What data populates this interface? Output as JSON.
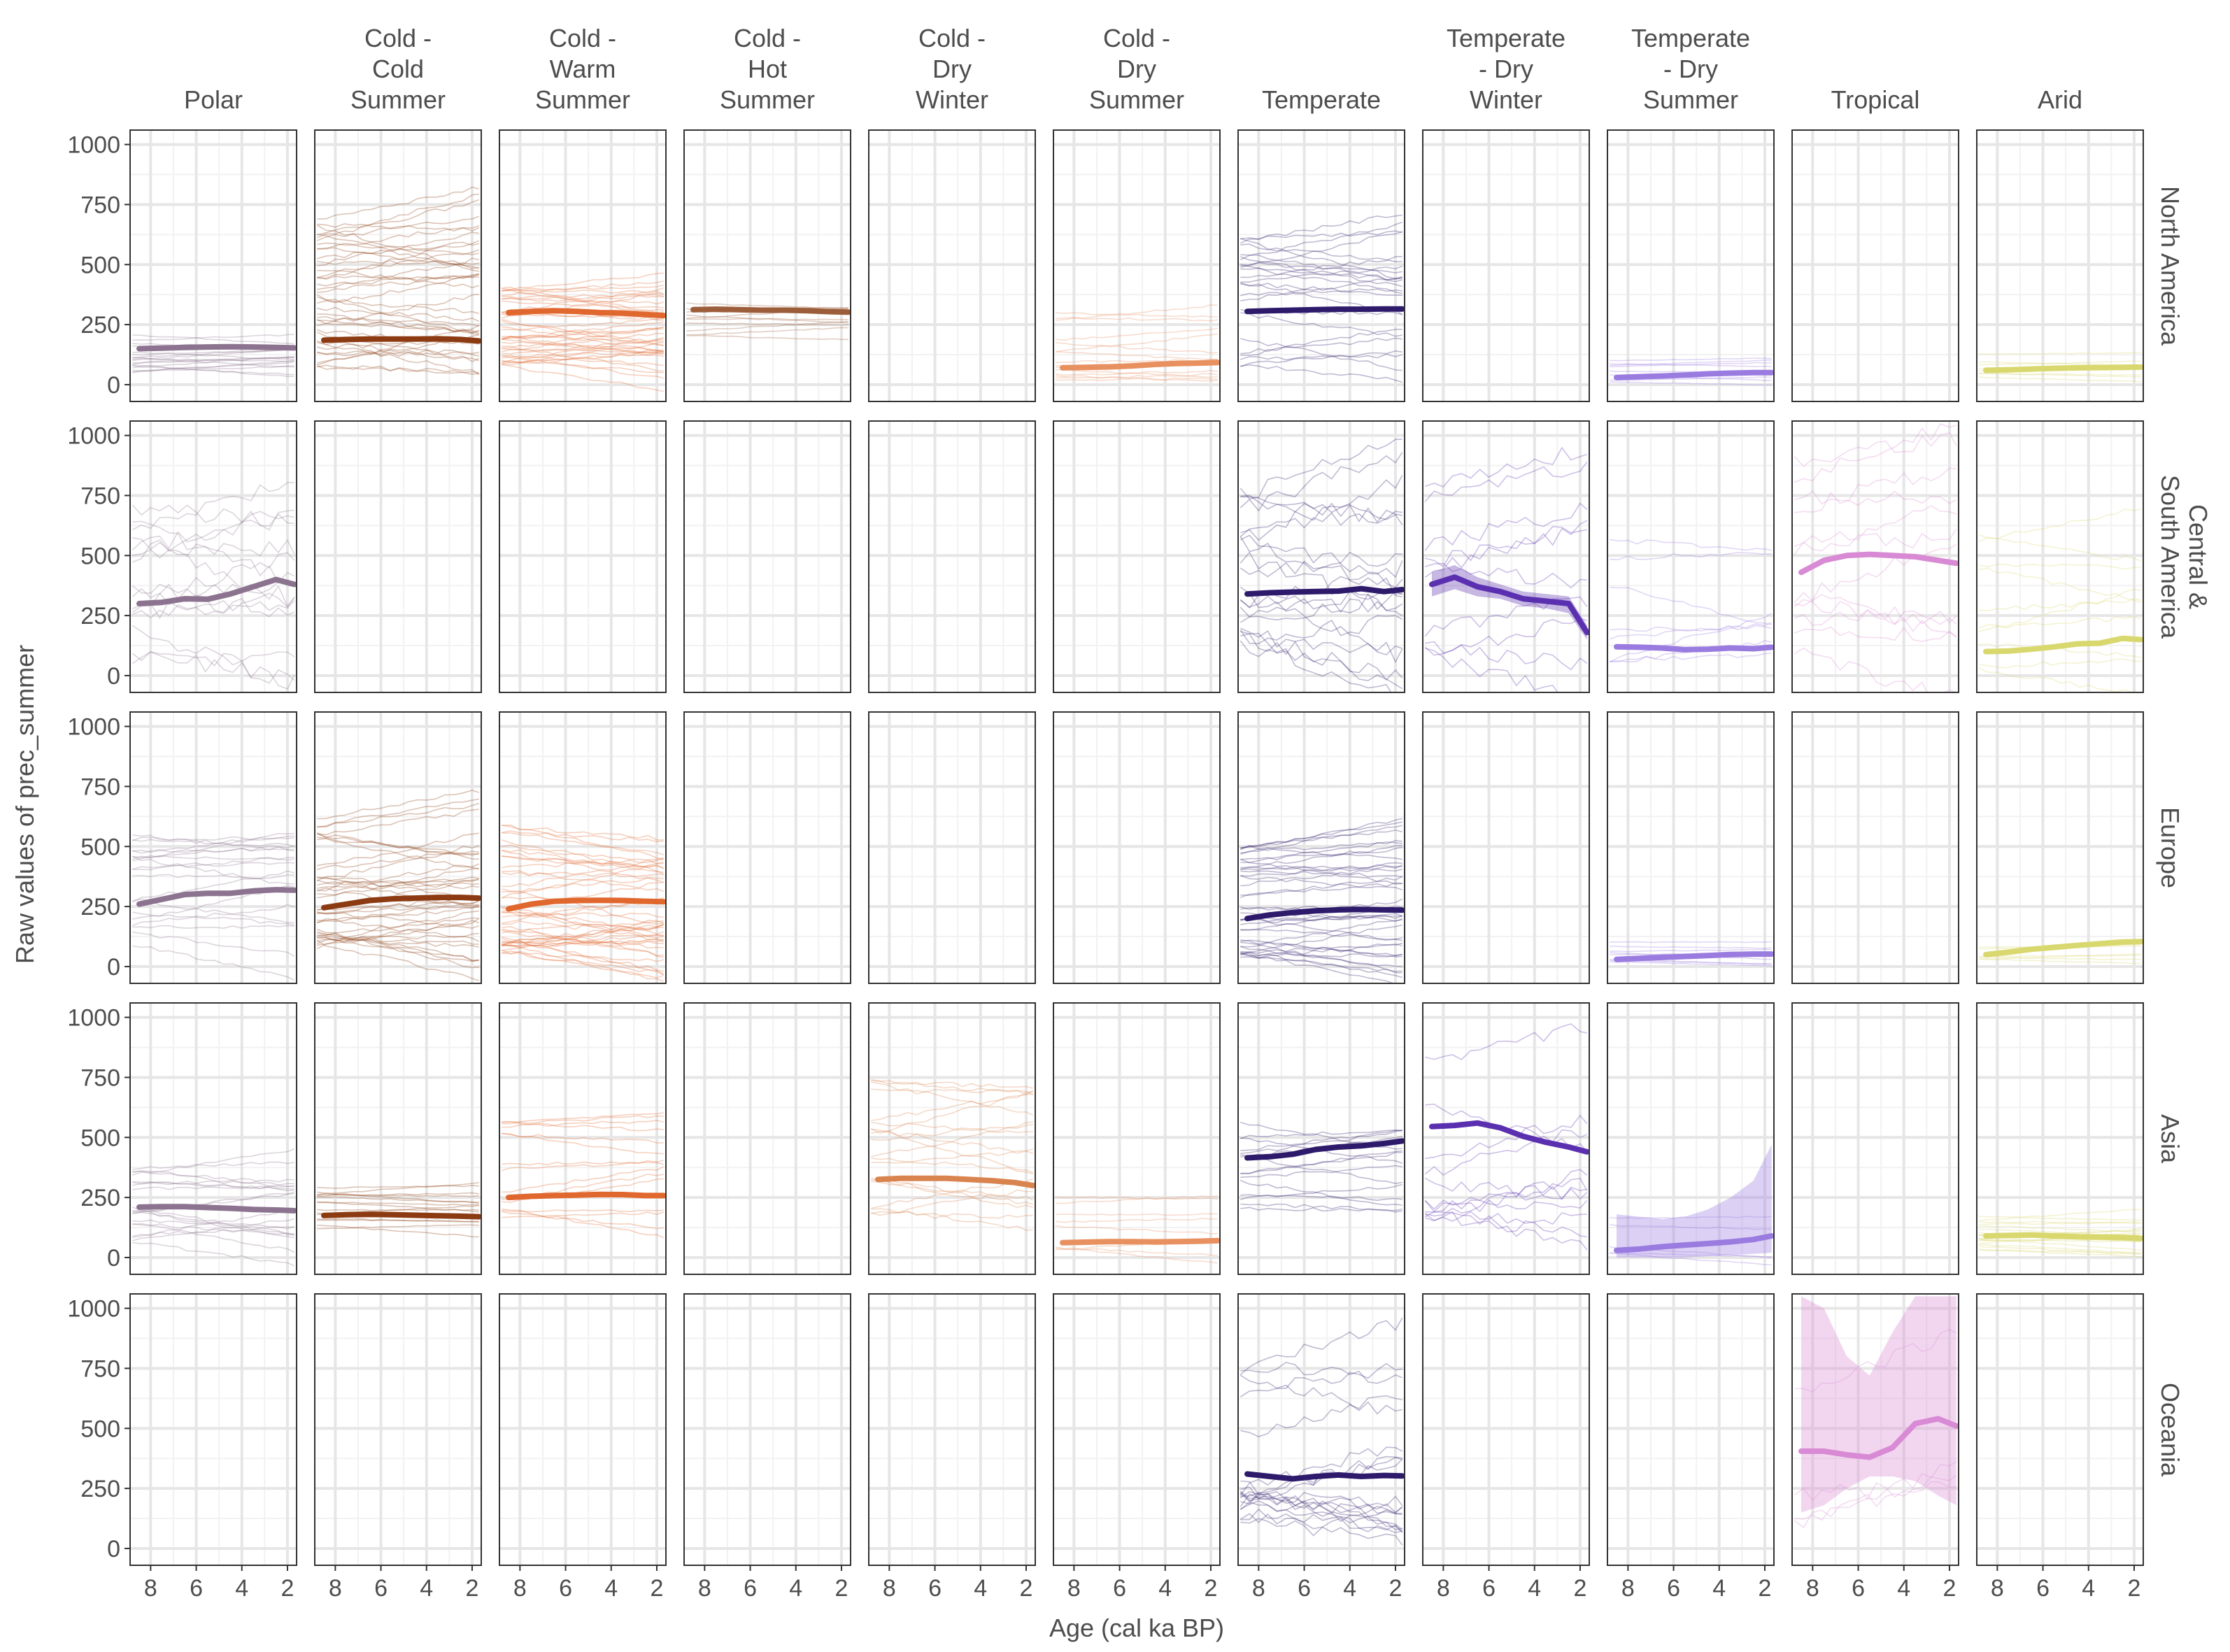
{
  "chart_data": {
    "type": "line",
    "xlabel": "Age (cal ka BP)",
    "ylabel": "Raw values of prec_summer",
    "xlim": [
      8.9,
      1.6
    ],
    "ylim": [
      -70,
      1060
    ],
    "x_ticks": [
      8,
      6,
      4,
      2
    ],
    "x_tick_labels": [
      "8",
      "6",
      "4",
      "2"
    ],
    "y_ticks": [
      0,
      250,
      500,
      750,
      1000
    ],
    "y_tick_labels": [
      "0",
      "250",
      "500",
      "750",
      "1000"
    ],
    "grid": true,
    "columns": [
      "Polar",
      "Cold -\nCold\nSummer",
      "Cold -\nWarm\nSummer",
      "Cold -\nHot\nSummer",
      "Cold -\nDry\nWinter",
      "Cold -\nDry\nSummer",
      "Temperate",
      "Temperate\n- Dry\nWinter",
      "Temperate\n- Dry\nSummer",
      "Tropical",
      "Arid"
    ],
    "rows": [
      "North America",
      "Central &\nSouth America",
      "Europe",
      "Asia",
      "Oceania"
    ],
    "colors": [
      "#8c7390",
      "#8b3a12",
      "#e0672e",
      "#9c5e3a",
      "#d9844e",
      "#e8905f",
      "#2e1a6b",
      "#5b30b0",
      "#9a7be0",
      "#d98ad4",
      "#d9d86e"
    ],
    "x": [
      8.5,
      7.5,
      6.5,
      5.5,
      4.5,
      3.5,
      2.5,
      1.7
    ],
    "panels": [
      {
        "row": 0,
        "col": 0,
        "mean": [
          150,
          152,
          155,
          157,
          158,
          157,
          155,
          153
        ],
        "spread": [
          50,
          240
        ],
        "n": 18
      },
      {
        "row": 0,
        "col": 1,
        "mean": [
          185,
          188,
          190,
          190,
          190,
          191,
          188,
          182
        ],
        "spread": [
          70,
          700
        ],
        "n": 40
      },
      {
        "row": 0,
        "col": 2,
        "mean": [
          300,
          305,
          308,
          305,
          300,
          298,
          292,
          288
        ],
        "spread": [
          80,
          480
        ],
        "n": 40
      },
      {
        "row": 0,
        "col": 3,
        "mean": [
          312,
          314,
          312,
          310,
          310,
          308,
          304,
          302
        ],
        "spread": [
          200,
          350
        ],
        "n": 10
      },
      {
        "row": 0,
        "col": 5,
        "mean": [
          70,
          72,
          74,
          78,
          84,
          88,
          90,
          92
        ],
        "spread": [
          10,
          300
        ],
        "n": 15
      },
      {
        "row": 0,
        "col": 6,
        "mean": [
          305,
          308,
          310,
          312,
          314,
          314,
          315,
          315
        ],
        "spread": [
          80,
          650
        ],
        "n": 25
      },
      {
        "row": 0,
        "col": 8,
        "mean": [
          30,
          33,
          36,
          40,
          45,
          48,
          50,
          50
        ],
        "spread": [
          10,
          100
        ],
        "n": 8
      },
      {
        "row": 0,
        "col": 10,
        "mean": [
          60,
          62,
          65,
          68,
          70,
          71,
          72,
          73
        ],
        "spread": [
          30,
          140
        ],
        "n": 8
      },
      {
        "row": 1,
        "col": 0,
        "mean": [
          300,
          305,
          320,
          318,
          340,
          370,
          400,
          380
        ],
        "spread": [
          80,
          1000
        ],
        "n": 15
      },
      {
        "row": 1,
        "col": 6,
        "mean": [
          340,
          345,
          348,
          350,
          352,
          362,
          350,
          358
        ],
        "spread": [
          90,
          1000
        ],
        "n": 20
      },
      {
        "row": 1,
        "col": 7,
        "mean": [
          380,
          410,
          370,
          350,
          320,
          310,
          300,
          180
        ],
        "spread": [
          70,
          880
        ],
        "n": 10
      },
      {
        "row": 1,
        "col": 8,
        "mean": [
          120,
          118,
          115,
          108,
          110,
          115,
          112,
          118
        ],
        "spread": [
          30,
          700
        ],
        "n": 8
      },
      {
        "row": 1,
        "col": 9,
        "mean": [
          430,
          480,
          500,
          505,
          500,
          495,
          480,
          468
        ],
        "spread": [
          100,
          1000
        ],
        "n": 12
      },
      {
        "row": 1,
        "col": 10,
        "mean": [
          100,
          102,
          110,
          120,
          132,
          135,
          155,
          150
        ],
        "spread": [
          20,
          700
        ],
        "n": 10
      },
      {
        "row": 2,
        "col": 0,
        "mean": [
          260,
          280,
          300,
          305,
          305,
          315,
          320,
          318
        ],
        "spread": [
          90,
          620
        ],
        "n": 20
      },
      {
        "row": 2,
        "col": 1,
        "mean": [
          245,
          260,
          275,
          282,
          285,
          288,
          288,
          285
        ],
        "spread": [
          80,
          640
        ],
        "n": 40
      },
      {
        "row": 2,
        "col": 2,
        "mean": [
          240,
          260,
          272,
          275,
          276,
          275,
          272,
          270
        ],
        "spread": [
          60,
          600
        ],
        "n": 45
      },
      {
        "row": 2,
        "col": 6,
        "mean": [
          200,
          215,
          225,
          232,
          236,
          238,
          236,
          235
        ],
        "spread": [
          30,
          500
        ],
        "n": 40
      },
      {
        "row": 2,
        "col": 8,
        "mean": [
          30,
          34,
          38,
          42,
          46,
          50,
          52,
          52
        ],
        "spread": [
          10,
          110
        ],
        "n": 8
      },
      {
        "row": 2,
        "col": 10,
        "mean": [
          50,
          60,
          72,
          80,
          88,
          95,
          102,
          104
        ],
        "spread": [
          30,
          130
        ],
        "n": 6
      },
      {
        "row": 3,
        "col": 0,
        "mean": [
          210,
          212,
          212,
          208,
          205,
          200,
          198,
          195
        ],
        "spread": [
          60,
          500
        ],
        "n": 20
      },
      {
        "row": 3,
        "col": 1,
        "mean": [
          175,
          178,
          180,
          178,
          176,
          174,
          172,
          170
        ],
        "spread": [
          120,
          300
        ],
        "n": 15
      },
      {
        "row": 3,
        "col": 2,
        "mean": [
          250,
          255,
          258,
          260,
          263,
          262,
          258,
          258
        ],
        "spread": [
          150,
          580
        ],
        "n": 15
      },
      {
        "row": 3,
        "col": 4,
        "mean": [
          325,
          330,
          330,
          330,
          325,
          320,
          312,
          300
        ],
        "spread": [
          150,
          780
        ],
        "n": 20
      },
      {
        "row": 3,
        "col": 5,
        "mean": [
          62,
          64,
          66,
          66,
          65,
          66,
          68,
          70
        ],
        "spread": [
          30,
          280
        ],
        "n": 8
      },
      {
        "row": 3,
        "col": 6,
        "mean": [
          415,
          420,
          430,
          450,
          460,
          465,
          475,
          485
        ],
        "spread": [
          200,
          650
        ],
        "n": 15
      },
      {
        "row": 3,
        "col": 7,
        "mean": [
          545,
          550,
          560,
          540,
          505,
          480,
          460,
          440
        ],
        "spread": [
          150,
          880
        ],
        "n": 12
      },
      {
        "row": 3,
        "col": 8,
        "mean": [
          30,
          35,
          45,
          52,
          58,
          65,
          75,
          90
        ],
        "spread": [
          10,
          200
        ],
        "n": 5
      },
      {
        "row": 3,
        "col": 10,
        "mean": [
          90,
          92,
          94,
          90,
          86,
          85,
          84,
          80
        ],
        "spread": [
          30,
          200
        ],
        "n": 20
      },
      {
        "row": 4,
        "col": 6,
        "mean": [
          310,
          300,
          290,
          300,
          306,
          300,
          304,
          302
        ],
        "spread": [
          120,
          820
        ],
        "n": 20
      },
      {
        "row": 4,
        "col": 9,
        "mean": [
          405,
          405,
          390,
          380,
          420,
          520,
          540,
          510
        ],
        "spread": [
          80,
          1000
        ],
        "n": 4
      }
    ],
    "ribbons": [
      {
        "row": 1,
        "col": 7,
        "lower": [
          330,
          360,
          330,
          320,
          290,
          280,
          260,
          150
        ],
        "upper": [
          430,
          460,
          410,
          380,
          350,
          340,
          330,
          210
        ]
      },
      {
        "row": 3,
        "col": 8,
        "lower": [
          0,
          0,
          0,
          0,
          5,
          10,
          15,
          20
        ],
        "upper": [
          180,
          170,
          160,
          170,
          200,
          250,
          320,
          470
        ]
      },
      {
        "row": 4,
        "col": 9,
        "lower": [
          150,
          180,
          250,
          300,
          300,
          280,
          220,
          180
        ],
        "upper": [
          1050,
          1000,
          800,
          720,
          900,
          1050,
          1050,
          1050
        ]
      }
    ]
  }
}
